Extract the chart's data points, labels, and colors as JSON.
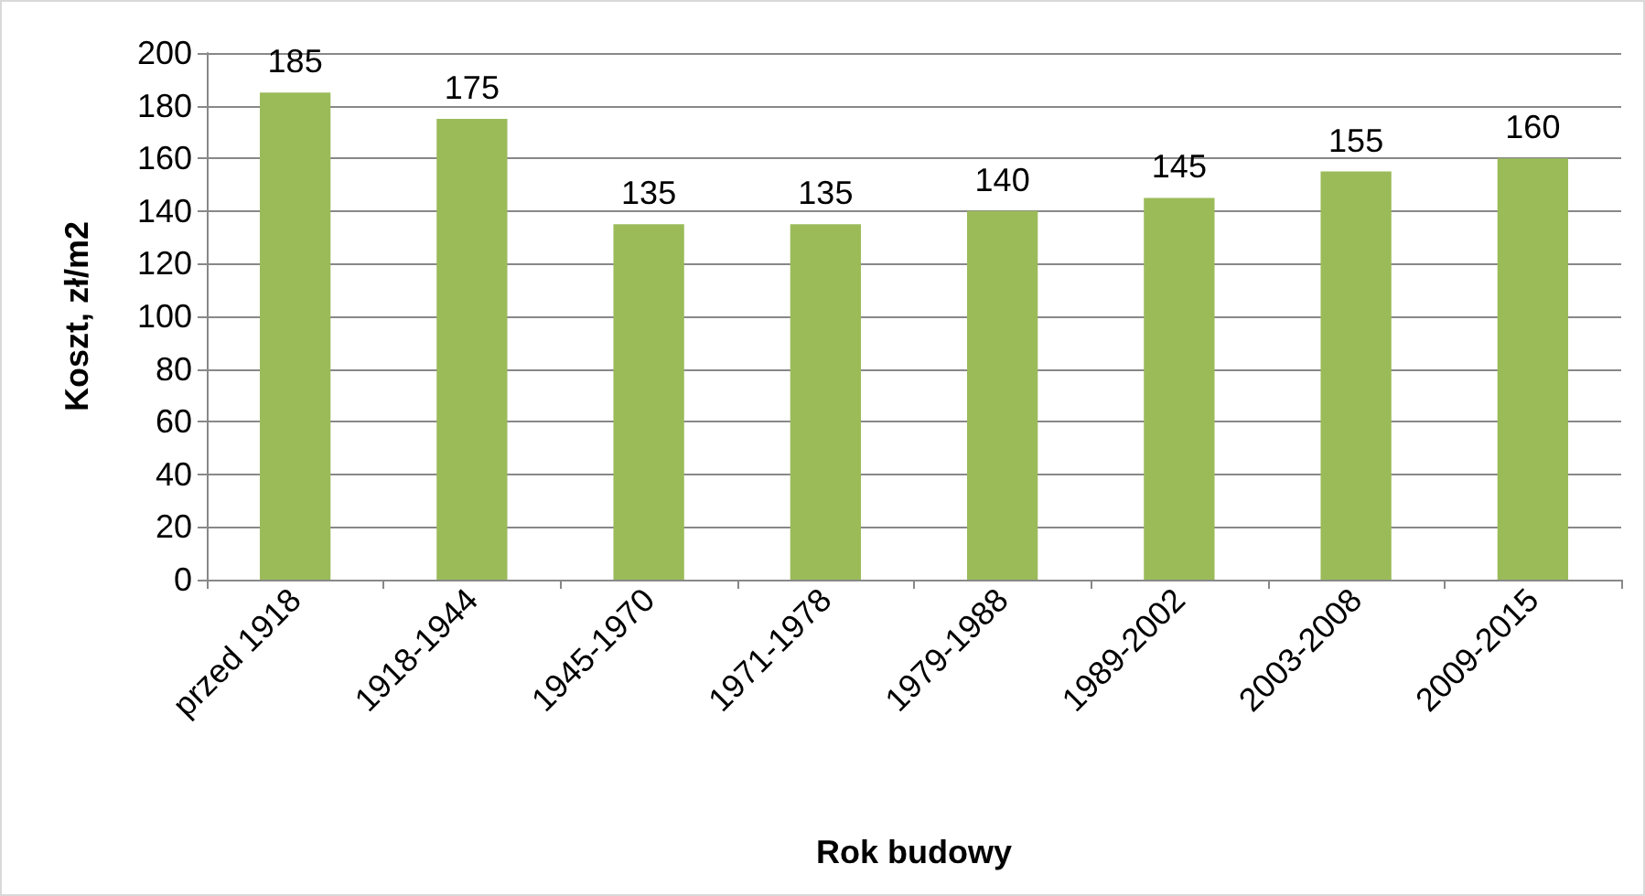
{
  "chart_data": {
    "type": "bar",
    "xlabel": "Rok budowy",
    "ylabel": "Koszt, zł/m2",
    "categories": [
      "przed 1918",
      "1918-1944",
      "1945-1970",
      "1971-1978",
      "1979-1988",
      "1989-2002",
      "2003-2008",
      "2009-2015"
    ],
    "values": [
      185,
      175,
      135,
      135,
      140,
      145,
      155,
      160
    ],
    "color": "#9bbb59",
    "ylim": [
      0,
      200
    ],
    "yticks": [
      0,
      20,
      40,
      60,
      80,
      100,
      120,
      140,
      160,
      180,
      200
    ],
    "grid": "y",
    "data_labels": true
  }
}
